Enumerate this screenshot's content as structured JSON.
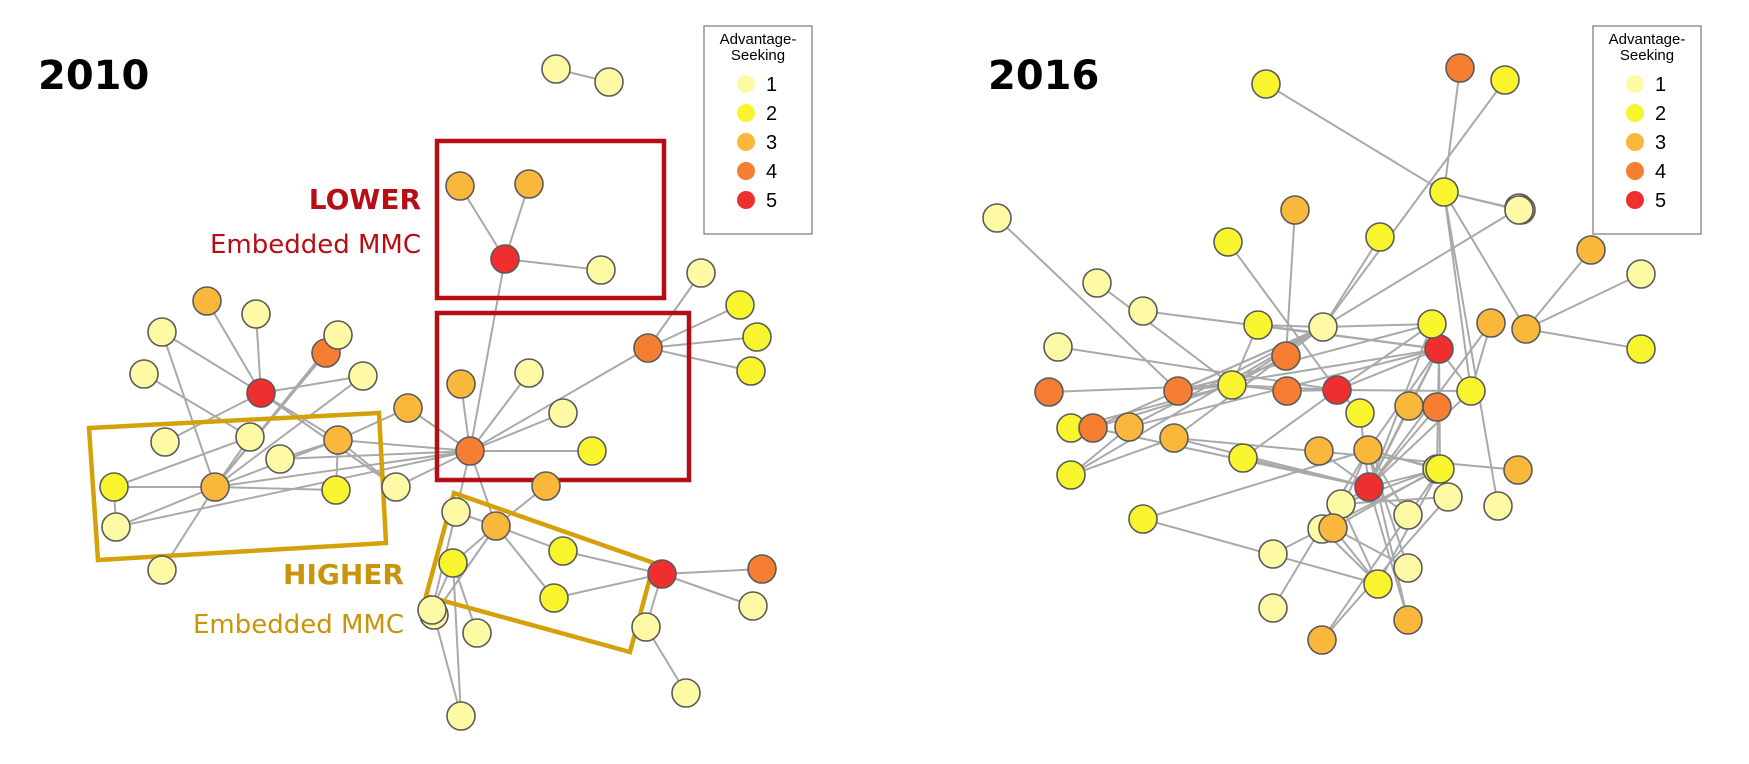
{
  "figure": {
    "left_panel": {
      "year": "2010"
    },
    "right_panel": {
      "year": "2016"
    },
    "legend": {
      "title_line1": "Advantage-",
      "title_line2": "Seeking",
      "items": [
        {
          "label": "1",
          "color": "#fdf9a4"
        },
        {
          "label": "2",
          "color": "#f8f52e"
        },
        {
          "label": "3",
          "color": "#f9b83b"
        },
        {
          "label": "4",
          "color": "#f57e33"
        },
        {
          "label": "5",
          "color": "#ef2f2f"
        }
      ]
    },
    "annotations": {
      "lower_title": "LOWER",
      "lower_subtitle": "Embedded MMC",
      "higher_title": "HIGHER",
      "higher_subtitle": "Embedded MMC",
      "lower_color": "#b50e14",
      "higher_color": "#c8940a"
    }
  },
  "chart_data": [
    {
      "type": "network",
      "title": "2010",
      "node_attribute": "Advantage-Seeking",
      "nodes": [
        {
          "id": "a",
          "level": 1
        },
        {
          "id": "b",
          "level": 1
        },
        {
          "id": "c",
          "level": 3
        },
        {
          "id": "d",
          "level": 3
        },
        {
          "id": "e",
          "level": 5
        },
        {
          "id": "f",
          "level": 1
        },
        {
          "id": "g",
          "level": 1
        },
        {
          "id": "h",
          "level": 2
        },
        {
          "id": "i",
          "level": 2
        },
        {
          "id": "j",
          "level": 2
        },
        {
          "id": "k",
          "level": 4
        },
        {
          "id": "l",
          "level": 3
        },
        {
          "id": "m",
          "level": 3
        },
        {
          "id": "n",
          "level": 1
        },
        {
          "id": "o",
          "level": 1
        },
        {
          "id": "p",
          "level": 4
        },
        {
          "id": "q",
          "level": 1
        },
        {
          "id": "r",
          "level": 1
        },
        {
          "id": "s",
          "level": 4
        },
        {
          "id": "t",
          "level": 1
        },
        {
          "id": "u",
          "level": 5
        },
        {
          "id": "v",
          "level": 3
        },
        {
          "id": "w",
          "level": 1
        },
        {
          "id": "x",
          "level": 1
        },
        {
          "id": "y",
          "level": 3
        },
        {
          "id": "z",
          "level": 2
        },
        {
          "id": "aa",
          "level": 1
        },
        {
          "id": "ab",
          "level": 1
        },
        {
          "id": "ac",
          "level": 1
        },
        {
          "id": "ad",
          "level": 3
        },
        {
          "id": "ae",
          "level": 2
        },
        {
          "id": "af",
          "level": 1
        },
        {
          "id": "ag",
          "level": 2
        },
        {
          "id": "ah",
          "level": 1
        },
        {
          "id": "ai",
          "level": 5
        },
        {
          "id": "aj",
          "level": 1
        },
        {
          "id": "ak",
          "level": 1
        },
        {
          "id": "al",
          "level": 3
        },
        {
          "id": "am",
          "level": 3
        },
        {
          "id": "an",
          "level": 2
        },
        {
          "id": "ao",
          "level": 2
        },
        {
          "id": "ap",
          "level": 2
        },
        {
          "id": "aq",
          "level": 1
        },
        {
          "id": "ar",
          "level": 5
        },
        {
          "id": "as",
          "level": 4
        },
        {
          "id": "at",
          "level": 1
        },
        {
          "id": "au",
          "level": 1
        },
        {
          "id": "av",
          "level": 1
        },
        {
          "id": "aw",
          "level": 1
        },
        {
          "id": "ax",
          "level": 1
        },
        {
          "id": "ay",
          "level": 1
        }
      ],
      "edges": [
        [
          "a",
          "b"
        ],
        [
          "c",
          "e"
        ],
        [
          "d",
          "e"
        ],
        [
          "e",
          "f"
        ],
        [
          "e",
          "s"
        ],
        [
          "s",
          "v"
        ],
        [
          "s",
          "w"
        ],
        [
          "s",
          "x"
        ],
        [
          "s",
          "y"
        ],
        [
          "s",
          "z"
        ],
        [
          "s",
          "ad"
        ],
        [
          "s",
          "af"
        ],
        [
          "s",
          "ah"
        ],
        [
          "s",
          "ak"
        ],
        [
          "s",
          "am"
        ],
        [
          "s",
          "l"
        ],
        [
          "s",
          "t"
        ],
        [
          "k",
          "g"
        ],
        [
          "k",
          "h"
        ],
        [
          "k",
          "i"
        ],
        [
          "k",
          "j"
        ],
        [
          "k",
          "s"
        ],
        [
          "u",
          "aa"
        ],
        [
          "u",
          "ab"
        ],
        [
          "u",
          "m"
        ],
        [
          "u",
          "n"
        ],
        [
          "u",
          "o"
        ],
        [
          "u",
          "l"
        ],
        [
          "u",
          "t"
        ],
        [
          "l",
          "y"
        ],
        [
          "l",
          "af"
        ],
        [
          "l",
          "t"
        ],
        [
          "l",
          "ae"
        ],
        [
          "l",
          "ad"
        ],
        [
          "p",
          "ad"
        ],
        [
          "o",
          "ad"
        ],
        [
          "q",
          "ad"
        ],
        [
          "r",
          "ac"
        ],
        [
          "ad",
          "ae"
        ],
        [
          "ad",
          "ag"
        ],
        [
          "ad",
          "ah"
        ],
        [
          "ad",
          "aj"
        ],
        [
          "ad",
          "ac"
        ],
        [
          "ad",
          "aa"
        ],
        [
          "ac",
          "ag"
        ],
        [
          "ag",
          "ah"
        ],
        [
          "am",
          "ao"
        ],
        [
          "am",
          "an"
        ],
        [
          "am",
          "ap"
        ],
        [
          "am",
          "ak"
        ],
        [
          "am",
          "aq"
        ],
        [
          "am",
          "al"
        ],
        [
          "ao",
          "ar"
        ],
        [
          "ap",
          "ar"
        ],
        [
          "ar",
          "as"
        ],
        [
          "ar",
          "at"
        ],
        [
          "ar",
          "au"
        ],
        [
          "au",
          "av"
        ],
        [
          "an",
          "aw"
        ],
        [
          "an",
          "ax"
        ],
        [
          "aq",
          "ax"
        ],
        [
          "ak",
          "ay"
        ],
        [
          "an",
          "ay"
        ]
      ]
    },
    {
      "type": "network",
      "title": "2016",
      "node_attribute": "Advantage-Seeking",
      "nodes": [
        {
          "id": "A1",
          "level": 1
        },
        {
          "id": "A2",
          "level": 2
        },
        {
          "id": "A3",
          "level": 4
        },
        {
          "id": "A4",
          "level": 2
        },
        {
          "id": "A5",
          "level": 1
        },
        {
          "id": "A6",
          "level": 2
        },
        {
          "id": "A7",
          "level": 3
        },
        {
          "id": "A8",
          "level": 2
        },
        {
          "id": "A9",
          "level": 2
        },
        {
          "id": "A10",
          "level": 3
        },
        {
          "id": "A11",
          "level": 3
        },
        {
          "id": "A12",
          "level": 3
        },
        {
          "id": "A13",
          "level": 1
        },
        {
          "id": "A14",
          "level": 2
        },
        {
          "id": "A15",
          "level": 1
        },
        {
          "id": "A16",
          "level": 1
        },
        {
          "id": "A17",
          "level": 1
        },
        {
          "id": "A18",
          "level": 4
        },
        {
          "id": "A19",
          "level": 1
        },
        {
          "id": "A20",
          "level": 2
        },
        {
          "id": "A21",
          "level": 4
        },
        {
          "id": "A22",
          "level": 1
        },
        {
          "id": "A23",
          "level": 2
        },
        {
          "id": "A24",
          "level": 2
        },
        {
          "id": "A25",
          "level": 4
        },
        {
          "id": "A26",
          "level": 5
        },
        {
          "id": "A27",
          "level": 4
        },
        {
          "id": "A28",
          "level": 5
        },
        {
          "id": "A29",
          "level": 2
        },
        {
          "id": "A30",
          "level": 2
        },
        {
          "id": "A31",
          "level": 3
        },
        {
          "id": "A32",
          "level": 4
        },
        {
          "id": "A33",
          "level": 3
        },
        {
          "id": "A34",
          "level": 3
        },
        {
          "id": "A35",
          "level": 3
        },
        {
          "id": "A36",
          "level": 2
        },
        {
          "id": "A37",
          "level": 2
        },
        {
          "id": "A38",
          "level": 2
        },
        {
          "id": "A39",
          "level": 5
        },
        {
          "id": "A40",
          "level": 4
        },
        {
          "id": "A41",
          "level": 2
        },
        {
          "id": "A42",
          "level": 3
        },
        {
          "id": "A43",
          "level": 3
        },
        {
          "id": "A44",
          "level": 2
        },
        {
          "id": "A45",
          "level": 1
        },
        {
          "id": "A46",
          "level": 1
        },
        {
          "id": "A47",
          "level": 1
        },
        {
          "id": "A48",
          "level": 3
        },
        {
          "id": "A49",
          "level": 2
        },
        {
          "id": "A50",
          "level": 1
        },
        {
          "id": "A51",
          "level": 1
        },
        {
          "id": "A52",
          "level": 3
        },
        {
          "id": "A53",
          "level": 2
        },
        {
          "id": "A54",
          "level": 1
        },
        {
          "id": "A55",
          "level": 3
        },
        {
          "id": "A56",
          "level": 1
        },
        {
          "id": "A57",
          "level": 3
        },
        {
          "id": "A58",
          "level": 1
        }
      ],
      "edges": [
        [
          "A1",
          "A21"
        ],
        [
          "A2",
          "A9"
        ],
        [
          "A3",
          "A9"
        ],
        [
          "A9",
          "A10"
        ],
        [
          "A9",
          "A11"
        ],
        [
          "A9",
          "A16"
        ],
        [
          "A9",
          "A29"
        ],
        [
          "A9",
          "A47"
        ],
        [
          "A11",
          "A12"
        ],
        [
          "A11",
          "A13"
        ],
        [
          "A11",
          "A14"
        ],
        [
          "A4",
          "A19"
        ],
        [
          "A5",
          "A19"
        ],
        [
          "A7",
          "A25"
        ],
        [
          "A8",
          "A19"
        ],
        [
          "A15",
          "A24"
        ],
        [
          "A6",
          "A26"
        ],
        [
          "A17",
          "A28"
        ],
        [
          "A18",
          "A24"
        ],
        [
          "A19",
          "A20"
        ],
        [
          "A19",
          "A21"
        ],
        [
          "A19",
          "A24"
        ],
        [
          "A19",
          "A30"
        ],
        [
          "A19",
          "A33"
        ],
        [
          "A19",
          "A32"
        ],
        [
          "A19",
          "A38"
        ],
        [
          "A19",
          "A34"
        ],
        [
          "A20",
          "A24"
        ],
        [
          "A20",
          "A28"
        ],
        [
          "A21",
          "A24"
        ],
        [
          "A21",
          "A28"
        ],
        [
          "A21",
          "A30"
        ],
        [
          "A22",
          "A26"
        ],
        [
          "A23",
          "A24"
        ],
        [
          "A24",
          "A25"
        ],
        [
          "A24",
          "A26"
        ],
        [
          "A24",
          "A27"
        ],
        [
          "A24",
          "A32"
        ],
        [
          "A26",
          "A28"
        ],
        [
          "A26",
          "A36"
        ],
        [
          "A26",
          "A27"
        ],
        [
          "A26",
          "A29"
        ],
        [
          "A26",
          "A37"
        ],
        [
          "A28",
          "A29"
        ],
        [
          "A28",
          "A30"
        ],
        [
          "A28",
          "A33"
        ],
        [
          "A28",
          "A35"
        ],
        [
          "A28",
          "A39"
        ],
        [
          "A28",
          "A41"
        ],
        [
          "A28",
          "A43"
        ],
        [
          "A29",
          "A31"
        ],
        [
          "A29",
          "A39"
        ],
        [
          "A30",
          "A39"
        ],
        [
          "A31",
          "A39"
        ],
        [
          "A32",
          "A39"
        ],
        [
          "A34",
          "A39"
        ],
        [
          "A35",
          "A39"
        ],
        [
          "A36",
          "A39"
        ],
        [
          "A37",
          "A39"
        ],
        [
          "A39",
          "A40"
        ],
        [
          "A39",
          "A42"
        ],
        [
          "A39",
          "A44"
        ],
        [
          "A39",
          "A45"
        ],
        [
          "A39",
          "A50"
        ],
        [
          "A39",
          "A55"
        ],
        [
          "A39",
          "A46"
        ],
        [
          "A41",
          "A43"
        ],
        [
          "A41",
          "A44"
        ],
        [
          "A41",
          "A46"
        ],
        [
          "A41",
          "A52"
        ],
        [
          "A43",
          "A44"
        ],
        [
          "A43",
          "A49"
        ],
        [
          "A43",
          "A52"
        ],
        [
          "A43",
          "A55"
        ],
        [
          "A43",
          "A56"
        ],
        [
          "A43",
          "A58"
        ],
        [
          "A44",
          "A53"
        ],
        [
          "A44",
          "A54"
        ],
        [
          "A44",
          "A57"
        ],
        [
          "A45",
          "A43"
        ],
        [
          "A46",
          "A53"
        ],
        [
          "A46",
          "A51"
        ],
        [
          "A48",
          "A34"
        ],
        [
          "A49",
          "A53"
        ],
        [
          "A50",
          "A53"
        ],
        [
          "A51",
          "A57"
        ],
        [
          "A52",
          "A53"
        ],
        [
          "A52",
          "A56"
        ],
        [
          "A33",
          "A38"
        ],
        [
          "A34",
          "A38"
        ],
        [
          "A26",
          "A30"
        ],
        [
          "A28",
          "A44"
        ]
      ]
    }
  ]
}
